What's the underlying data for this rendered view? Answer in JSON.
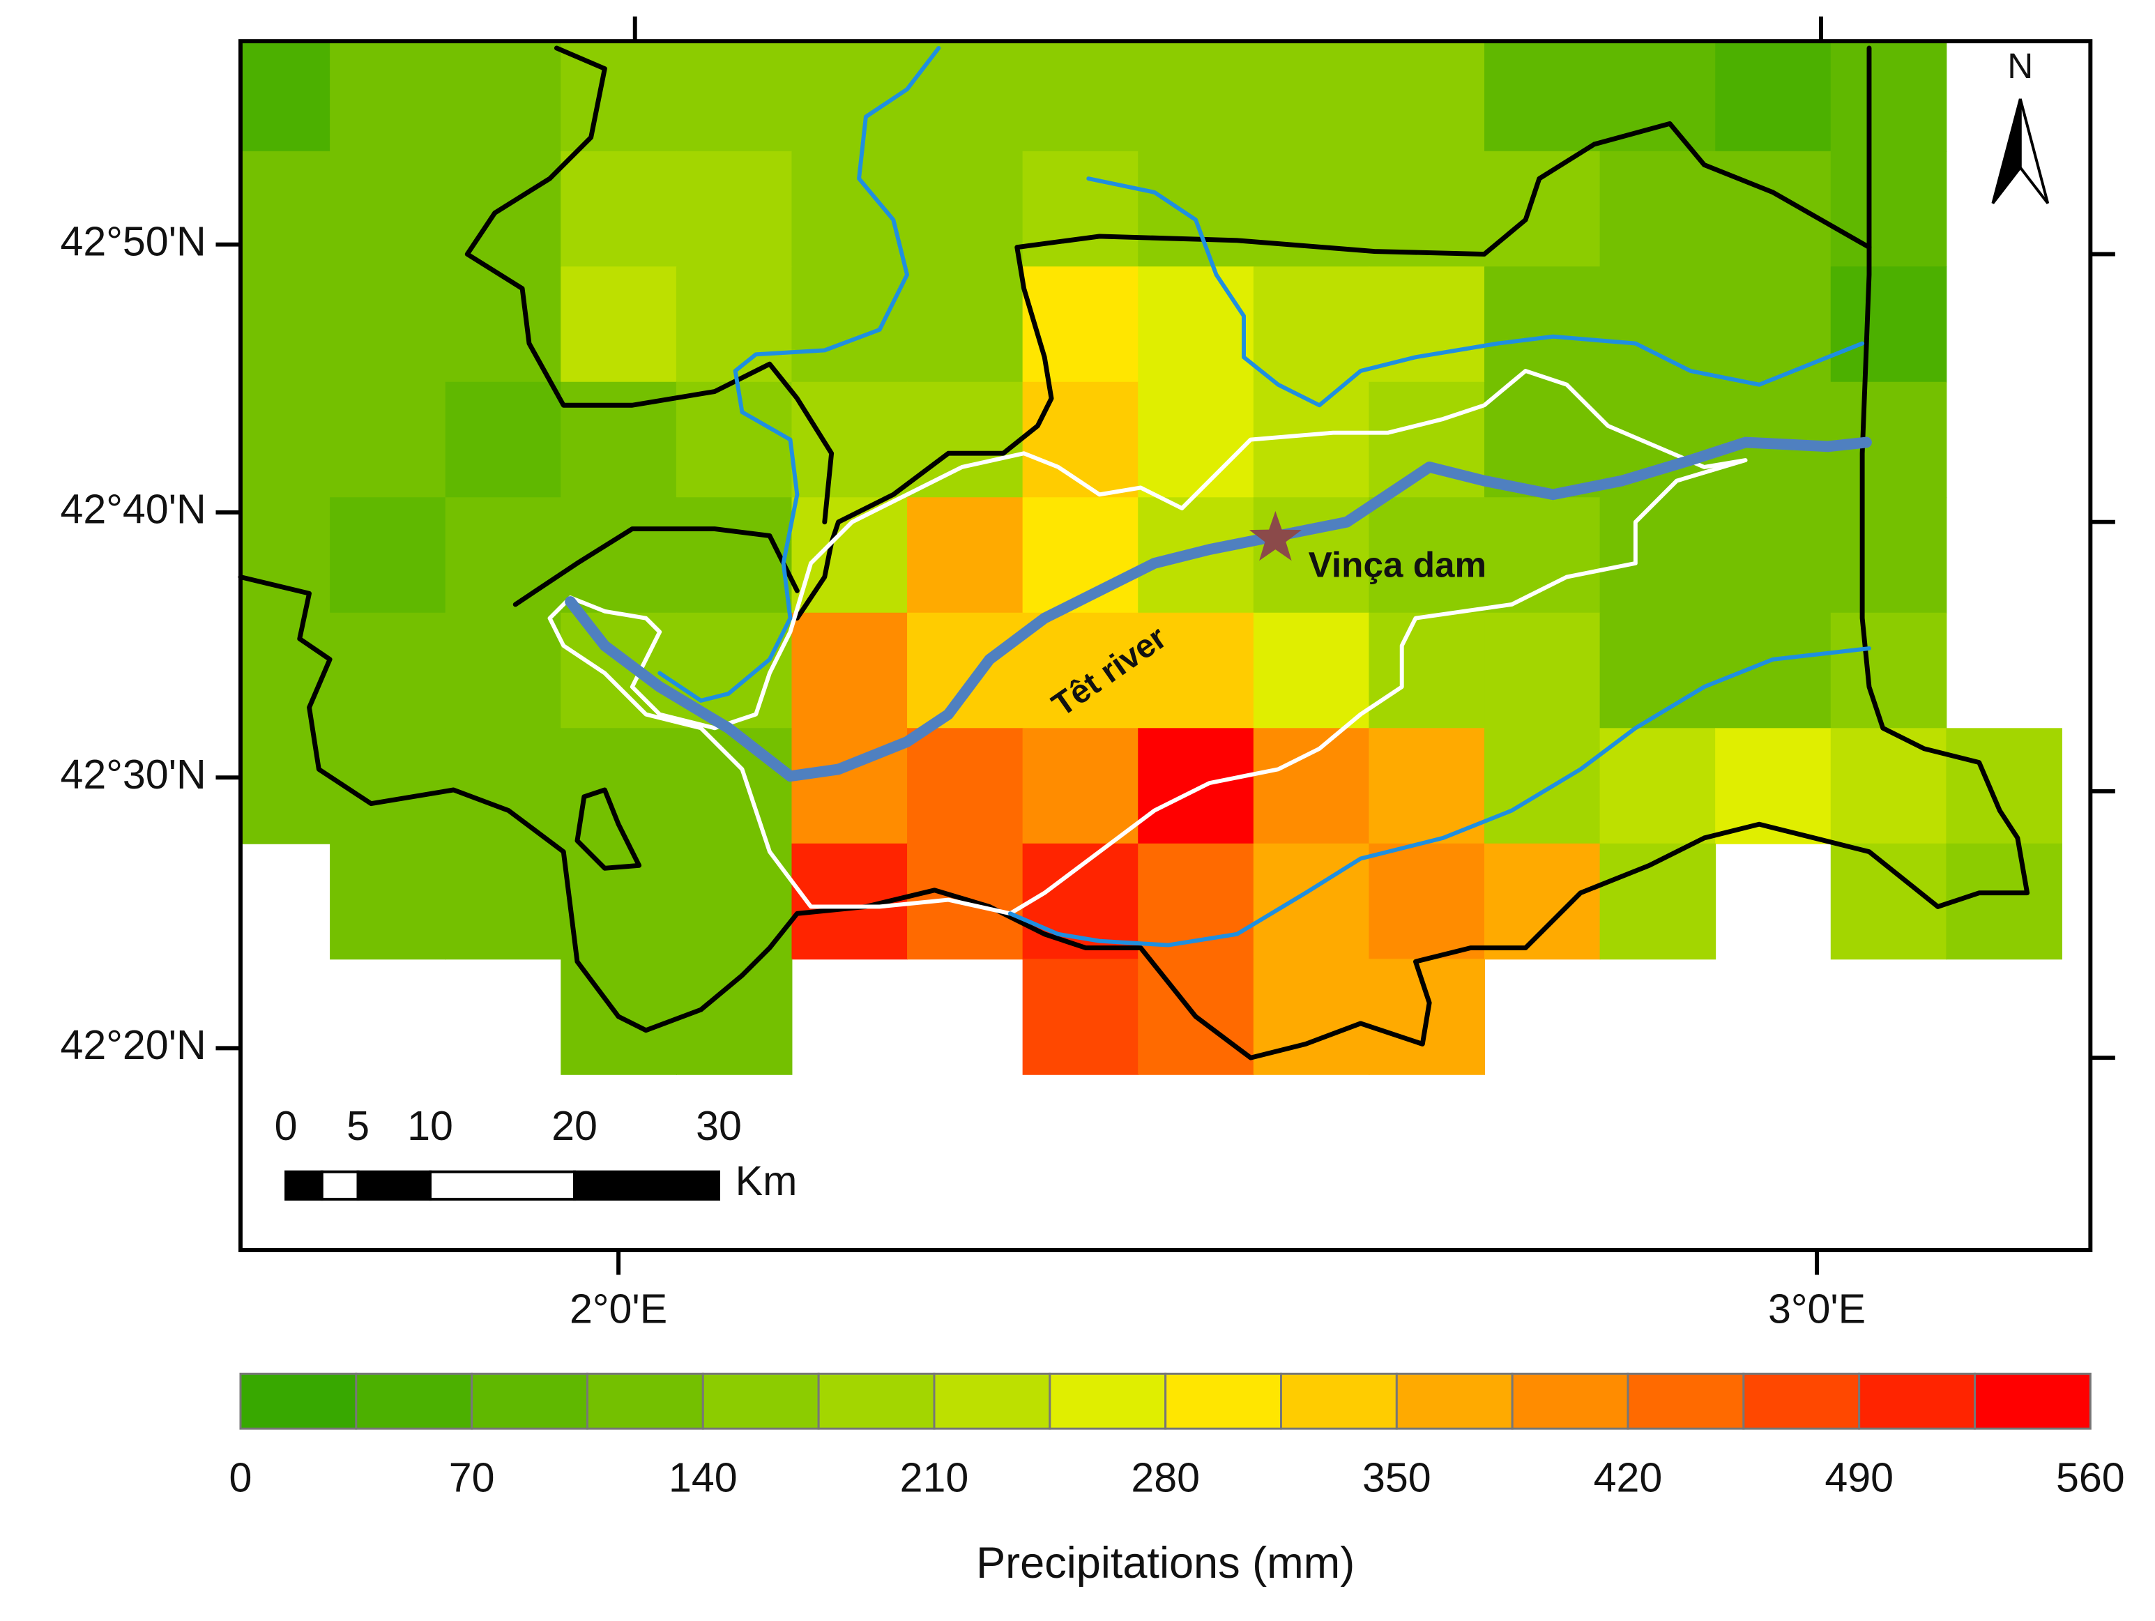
{
  "map": {
    "lat_labels": [
      "42°50'N",
      "42°40'N",
      "42°30'N",
      "42°20'N"
    ],
    "lon_labels": [
      "2°0'E",
      "3°0'E"
    ],
    "north": "N",
    "dam_label": "Vinça dam",
    "river_label": "Têt river",
    "scale_bar": {
      "ticks": [
        0,
        5,
        10,
        20,
        30
      ],
      "unit": "Km"
    },
    "grid": [
      [
        52,
        122,
        122,
        157,
        157,
        157,
        157,
        157,
        157,
        157,
        157,
        87,
        87,
        52,
        87,
        null
      ],
      [
        122,
        122,
        122,
        192,
        192,
        157,
        157,
        192,
        157,
        157,
        157,
        157,
        122,
        122,
        87,
        null
      ],
      [
        122,
        122,
        122,
        227,
        192,
        157,
        157,
        297,
        262,
        227,
        227,
        122,
        122,
        122,
        52,
        null
      ],
      [
        122,
        122,
        87,
        122,
        157,
        192,
        192,
        332,
        262,
        227,
        192,
        122,
        122,
        122,
        122,
        null
      ],
      [
        122,
        87,
        122,
        122,
        122,
        227,
        367,
        297,
        227,
        192,
        157,
        157,
        122,
        122,
        122,
        null
      ],
      [
        122,
        122,
        122,
        157,
        157,
        402,
        332,
        332,
        332,
        262,
        192,
        192,
        122,
        122,
        157,
        null
      ],
      [
        122,
        122,
        122,
        122,
        122,
        402,
        437,
        402,
        542,
        402,
        367,
        192,
        227,
        262,
        227,
        192
      ],
      [
        null,
        122,
        122,
        122,
        122,
        507,
        437,
        507,
        437,
        367,
        402,
        367,
        192,
        null,
        192,
        157
      ],
      [
        null,
        null,
        null,
        122,
        122,
        null,
        null,
        472,
        437,
        367,
        367,
        null,
        null,
        null,
        null,
        null
      ]
    ],
    "colorbar": {
      "lim": [
        0,
        560
      ],
      "ticks": [
        0,
        70,
        140,
        210,
        280,
        350,
        420,
        490,
        560
      ],
      "colors": [
        "#38a800",
        "#4cb000",
        "#60b800",
        "#74c000",
        "#8ccc00",
        "#a3d600",
        "#bde000",
        "#e0ee00",
        "#ffe600",
        "#ffcc00",
        "#ffaa00",
        "#ff8c00",
        "#ff6a00",
        "#ff4800",
        "#ff2400",
        "#ff0000"
      ],
      "label": "Precipitations (mm)"
    }
  }
}
